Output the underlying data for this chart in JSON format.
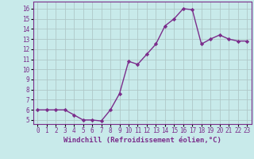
{
  "x": [
    0,
    1,
    2,
    3,
    4,
    5,
    6,
    7,
    8,
    9,
    10,
    11,
    12,
    13,
    14,
    15,
    16,
    17,
    18,
    19,
    20,
    21,
    22,
    23
  ],
  "y": [
    6.0,
    6.0,
    6.0,
    6.0,
    5.5,
    5.0,
    5.0,
    4.9,
    6.0,
    7.6,
    10.8,
    10.5,
    11.5,
    12.5,
    14.3,
    15.0,
    16.0,
    15.9,
    12.5,
    13.0,
    13.4,
    13.0,
    12.8,
    12.8
  ],
  "line_color": "#7b2d8b",
  "marker": "D",
  "marker_size": 2.2,
  "line_width": 1.0,
  "bg_color": "#c8eaea",
  "grid_color": "#afc8c8",
  "xlabel": "Windchill (Refroidissement éolien,°C)",
  "xlabel_fontsize": 6.5,
  "ytick_labels": [
    "5",
    "6",
    "7",
    "8",
    "9",
    "10",
    "11",
    "12",
    "13",
    "14",
    "15",
    "16"
  ],
  "ytick_values": [
    5,
    6,
    7,
    8,
    9,
    10,
    11,
    12,
    13,
    14,
    15,
    16
  ],
  "ylim": [
    4.6,
    16.7
  ],
  "xlim": [
    -0.5,
    23.5
  ],
  "tick_color": "#7b2d8b",
  "tick_fontsize": 5.5,
  "spine_color": "#7b2d8b"
}
